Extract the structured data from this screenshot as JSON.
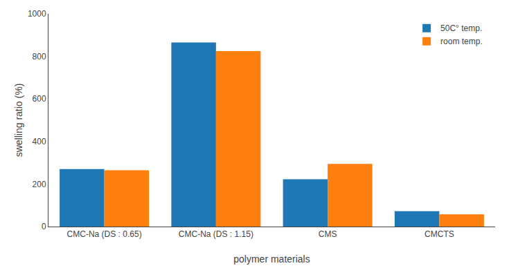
{
  "chart_data": {
    "type": "bar",
    "categories": [
      "CMC-Na (DS : 0.65)",
      "CMC-Na (DS : 1.15)",
      "CMS",
      "CMCTS"
    ],
    "series": [
      {
        "name": "50C° temp.",
        "values": [
          270,
          865,
          222,
          72
        ]
      },
      {
        "name": "room temp.",
        "values": [
          265,
          825,
          295,
          58
        ]
      }
    ],
    "xlabel": "polymer materials",
    "ylabel": "swelling ratio (%)",
    "ylim": [
      0,
      1000
    ],
    "yticks": [
      0,
      200,
      400,
      600,
      800,
      1000
    ],
    "grid": false,
    "legend": "upper right"
  }
}
